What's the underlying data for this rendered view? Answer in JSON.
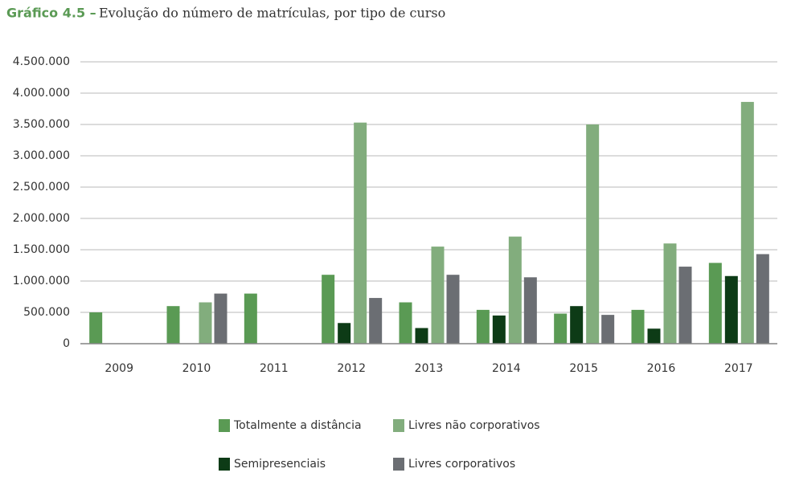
{
  "chart_data": {
    "type": "bar",
    "title_label": "Gráfico 4.5 –",
    "title": "Evolução do número de matrículas, por tipo de curso",
    "categories": [
      "2009",
      "2010",
      "2011",
      "2012",
      "2013",
      "2014",
      "2015",
      "2016",
      "2017"
    ],
    "series": [
      {
        "name": "Totalmente a distância",
        "color": "#5a9a54",
        "values": [
          500000,
          600000,
          800000,
          1100000,
          660000,
          540000,
          480000,
          540000,
          1290000
        ]
      },
      {
        "name": "Semipresenciais",
        "color": "#0d3b16",
        "values": [
          null,
          null,
          null,
          330000,
          250000,
          450000,
          600000,
          240000,
          1080000
        ]
      },
      {
        "name": "Livres não corporativos",
        "color": "#82ad7d",
        "values": [
          null,
          660000,
          null,
          3530000,
          1550000,
          1710000,
          3500000,
          1600000,
          3860000
        ]
      },
      {
        "name": "Livres corporativos",
        "color": "#6b6e73",
        "values": [
          null,
          800000,
          null,
          730000,
          1100000,
          1060000,
          460000,
          1230000,
          1430000
        ]
      }
    ],
    "ylim": [
      0,
      4500000
    ],
    "yticks": [
      0,
      {
        "value": 500000,
        "label": "500.000"
      },
      {
        "value": 1000000,
        "label": "1.000.000"
      },
      {
        "value": 1500000,
        "label": "1.500.000"
      },
      {
        "value": 2000000,
        "label": "2.000.000"
      },
      {
        "value": 2500000,
        "label": "2.500.000"
      },
      {
        "value": 3000000,
        "label": "3.000.000"
      },
      {
        "value": 3500000,
        "label": "3.500.000"
      },
      {
        "value": 4000000,
        "label": "4.000.000"
      },
      {
        "value": 4500000,
        "label": "4.500.000"
      }
    ],
    "grid": true
  }
}
